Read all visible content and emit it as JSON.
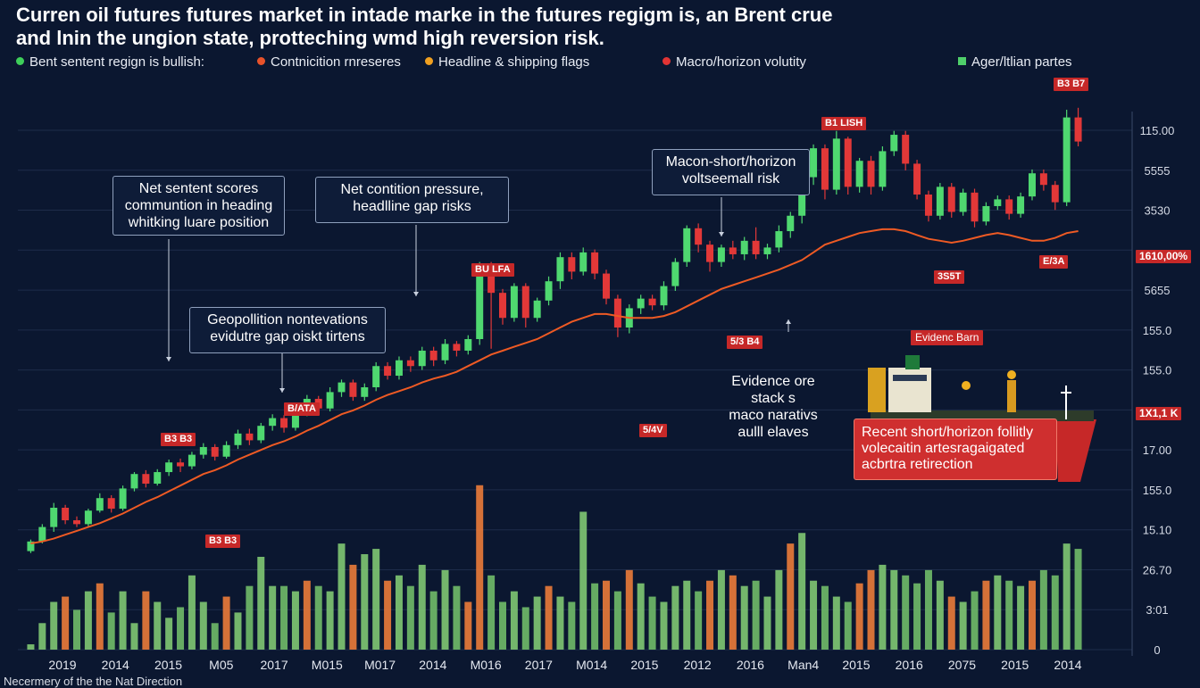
{
  "title_line1": "Curren oil futures futures market in intade marke in the futures regigm is, an Brent crue",
  "title_line2": "and lnin the ungion state, protteching wmd high reversion risk.",
  "legend": [
    {
      "label": "Bent sentent regign is bullish:",
      "color": "#3ecf5a",
      "shape": "dot"
    },
    {
      "label": "Contnicition rnreseres",
      "color": "#e8522a",
      "shape": "dot"
    },
    {
      "label": "Headline & shipping flags",
      "color": "#f0a020",
      "shape": "dot"
    },
    {
      "label": "Macro/horizon volutity",
      "color": "#e23434",
      "shape": "dot"
    },
    {
      "label": "Ager/ltlian partes",
      "color": "#4fcf6a",
      "shape": "square"
    }
  ],
  "callouts": {
    "net_sentiment": "Net sentent scores\ncommuntion in heading\nwhitking luare position",
    "net_contition": "Net contition pressure,\nheadlline gap risks",
    "macro_short": "Macon-short/horizon\nvoltseemall risk",
    "geopolitical": "Geopollition nontevations\nevidutre gap oiskt tirtens",
    "evidence": "Evidence ore\nstack s\nmaco narativs\naulll elaves",
    "recent": "Recent short/horizon follitly\nvolecaitin artesragaigated\nacbrtra retirection"
  },
  "tags": {
    "t1": "B3 B3",
    "t2": "B3 B3",
    "t3": "B/ATA",
    "t4": "BU LFA",
    "t5": "5/4V",
    "t6": "5/3 B4",
    "t7": "B1 LISH",
    "t8": "3S5T",
    "t9": "B3 B7",
    "t10": "E/3A",
    "evidence_tag": "Evidenc Barn",
    "right_tag1": "1610,00%",
    "right_tag2": "1X1,1 K"
  },
  "footer": "Necermery of the the Nat Direction",
  "chart_data": {
    "type": "candlestick",
    "x_tick_labels": [
      "2019",
      "2014",
      "2015",
      "M05",
      "2017",
      "M015",
      "M017",
      "2014",
      "M016",
      "2017",
      "M014",
      "2015",
      "2012",
      "2016",
      "Man4",
      "2015",
      "2016",
      "2075",
      "2015",
      "2014"
    ],
    "y_tick_labels": [
      "115.00",
      "5555",
      "3530",
      "",
      "5655",
      "155.0",
      "155.0",
      "",
      "17.00",
      "155.0",
      "15.10",
      "26.70",
      "3:01",
      "0"
    ],
    "candles": [
      [
        30,
        40,
        28,
        42
      ],
      [
        40,
        55,
        38,
        58
      ],
      [
        55,
        75,
        50,
        80
      ],
      [
        75,
        62,
        58,
        78
      ],
      [
        62,
        58,
        55,
        66
      ],
      [
        58,
        72,
        56,
        74
      ],
      [
        72,
        85,
        70,
        90
      ],
      [
        85,
        74,
        70,
        88
      ],
      [
        74,
        95,
        72,
        98
      ],
      [
        95,
        110,
        92,
        112
      ],
      [
        110,
        100,
        96,
        114
      ],
      [
        100,
        112,
        98,
        115
      ],
      [
        112,
        122,
        108,
        125
      ],
      [
        122,
        118,
        112,
        126
      ],
      [
        118,
        130,
        115,
        133
      ],
      [
        130,
        138,
        126,
        142
      ],
      [
        138,
        128,
        124,
        141
      ],
      [
        128,
        140,
        126,
        144
      ],
      [
        140,
        152,
        136,
        156
      ],
      [
        152,
        145,
        140,
        157
      ],
      [
        145,
        160,
        142,
        163
      ],
      [
        160,
        168,
        155,
        172
      ],
      [
        168,
        158,
        153,
        171
      ],
      [
        158,
        175,
        155,
        178
      ],
      [
        175,
        188,
        170,
        192
      ],
      [
        188,
        178,
        174,
        191
      ],
      [
        178,
        195,
        175,
        200
      ],
      [
        195,
        205,
        190,
        208
      ],
      [
        205,
        190,
        186,
        208
      ],
      [
        190,
        200,
        186,
        204
      ],
      [
        200,
        222,
        196,
        226
      ],
      [
        222,
        212,
        208,
        226
      ],
      [
        212,
        228,
        208,
        232
      ],
      [
        228,
        222,
        216,
        232
      ],
      [
        222,
        238,
        218,
        242
      ],
      [
        238,
        228,
        222,
        242
      ],
      [
        228,
        245,
        224,
        250
      ],
      [
        245,
        238,
        232,
        248
      ],
      [
        238,
        250,
        234,
        254
      ],
      [
        250,
        320,
        244,
        330
      ],
      [
        320,
        298,
        240,
        330
      ],
      [
        298,
        272,
        265,
        302
      ],
      [
        272,
        305,
        268,
        308
      ],
      [
        305,
        272,
        262,
        308
      ],
      [
        272,
        290,
        268,
        293
      ],
      [
        290,
        310,
        285,
        315
      ],
      [
        310,
        335,
        302,
        340
      ],
      [
        335,
        320,
        312,
        340
      ],
      [
        320,
        340,
        316,
        345
      ],
      [
        340,
        318,
        312,
        343
      ],
      [
        318,
        292,
        286,
        322
      ],
      [
        292,
        262,
        252,
        296
      ],
      [
        262,
        282,
        256,
        286
      ],
      [
        282,
        292,
        276,
        296
      ],
      [
        292,
        285,
        280,
        296
      ],
      [
        285,
        305,
        280,
        310
      ],
      [
        305,
        330,
        300,
        334
      ],
      [
        330,
        365,
        325,
        368
      ],
      [
        365,
        348,
        340,
        370
      ],
      [
        348,
        330,
        320,
        352
      ],
      [
        330,
        345,
        325,
        348
      ],
      [
        345,
        338,
        333,
        352
      ],
      [
        338,
        352,
        332,
        356
      ],
      [
        352,
        338,
        333,
        366
      ],
      [
        338,
        345,
        333,
        349
      ],
      [
        345,
        362,
        340,
        368
      ],
      [
        362,
        378,
        355,
        382
      ],
      [
        378,
        418,
        370,
        422
      ],
      [
        418,
        448,
        410,
        452
      ],
      [
        448,
        405,
        395,
        452
      ],
      [
        405,
        458,
        400,
        466
      ],
      [
        458,
        408,
        400,
        460
      ],
      [
        408,
        435,
        402,
        438
      ],
      [
        435,
        408,
        400,
        440
      ],
      [
        408,
        445,
        404,
        450
      ],
      [
        445,
        462,
        440,
        466
      ],
      [
        462,
        432,
        425,
        466
      ],
      [
        432,
        400,
        395,
        436
      ],
      [
        400,
        378,
        372,
        404
      ],
      [
        378,
        408,
        374,
        412
      ],
      [
        408,
        382,
        376,
        412
      ],
      [
        382,
        402,
        378,
        406
      ],
      [
        402,
        372,
        366,
        406
      ],
      [
        372,
        388,
        368,
        392
      ],
      [
        388,
        395,
        384,
        399
      ],
      [
        395,
        380,
        374,
        399
      ],
      [
        380,
        398,
        376,
        402
      ],
      [
        398,
        422,
        394,
        426
      ],
      [
        422,
        410,
        404,
        426
      ],
      [
        410,
        392,
        384,
        414
      ],
      [
        392,
        480,
        388,
        488
      ],
      [
        480,
        455,
        450,
        490
      ]
    ],
    "moving_average": [
      38,
      40,
      43,
      47,
      51,
      55,
      59,
      64,
      69,
      75,
      81,
      86,
      92,
      98,
      104,
      110,
      114,
      119,
      125,
      130,
      135,
      140,
      144,
      149,
      155,
      160,
      166,
      172,
      176,
      181,
      187,
      192,
      196,
      200,
      205,
      209,
      212,
      216,
      222,
      228,
      234,
      238,
      242,
      246,
      250,
      256,
      262,
      268,
      272,
      276,
      276,
      274,
      272,
      272,
      272,
      274,
      278,
      284,
      290,
      296,
      302,
      306,
      310,
      314,
      318,
      322,
      327,
      332,
      340,
      348,
      352,
      356,
      360,
      362,
      364,
      364,
      362,
      358,
      354,
      352,
      350,
      352,
      355,
      358,
      360,
      358,
      355,
      352,
      352,
      355,
      360,
      362
    ],
    "volume": [
      2,
      10,
      18,
      20,
      15,
      22,
      25,
      14,
      22,
      10,
      22,
      18,
      12,
      16,
      28,
      18,
      10,
      20,
      14,
      24,
      35,
      24,
      24,
      22,
      26,
      24,
      22,
      40,
      32,
      36,
      38,
      26,
      28,
      24,
      32,
      22,
      30,
      24,
      18,
      62,
      28,
      18,
      22,
      16,
      20,
      24,
      20,
      18,
      52,
      25,
      26,
      22,
      30,
      25,
      20,
      18,
      24,
      26,
      22,
      26,
      30,
      28,
      24,
      26,
      20,
      30,
      40,
      44,
      26,
      24,
      20,
      18,
      25,
      30,
      32,
      30,
      28,
      25,
      30,
      26,
      20,
      18,
      22,
      26,
      28,
      26,
      24,
      26,
      30,
      28,
      40,
      38
    ],
    "ylim": [
      0,
      500
    ]
  }
}
